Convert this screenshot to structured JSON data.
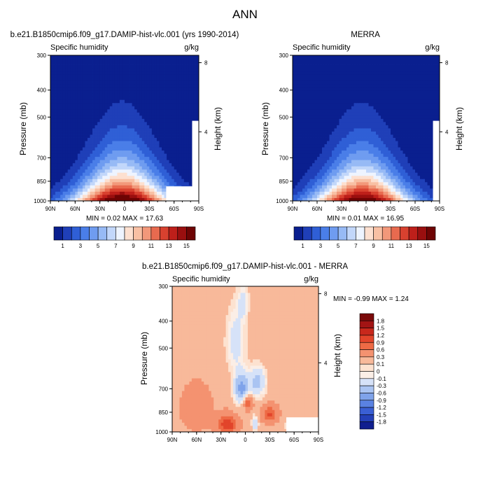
{
  "chart_data": {
    "type": "heatmap",
    "title": "ANN",
    "panels": [
      {
        "id": "model",
        "title": "b.e21.B1850cmip6.f09_g17.DAMIP-hist-vlc.001 (yrs 1990-2014)",
        "left_label": "Specific humidity",
        "right_label": "g/kg",
        "ylabel": "Pressure (mb)",
        "ylabel_right": "Height (km)",
        "x_ticks": [
          "90N",
          "60N",
          "30N",
          "0",
          "30S",
          "60S",
          "90S"
        ],
        "y_ticks": [
          "300",
          "400",
          "500",
          "700",
          "850",
          "1000"
        ],
        "height_ticks": [
          "8",
          "4"
        ],
        "stats": "MIN =  0.02  MAX =  17.63",
        "peak": 17.63,
        "peak_lat": 3
      },
      {
        "id": "obs",
        "title": "MERRA",
        "left_label": "Specific humidity",
        "right_label": "g/kg",
        "ylabel": "Pressure (mb)",
        "ylabel_right": "Height (km)",
        "x_ticks": [
          "90N",
          "60N",
          "30N",
          "0",
          "30S",
          "60S",
          "90S"
        ],
        "y_ticks": [
          "300",
          "400",
          "500",
          "700",
          "850",
          "1000"
        ],
        "height_ticks": [
          "8",
          "4"
        ],
        "stats": "MIN =  0.01  MAX =  16.95",
        "peak": 16.95,
        "peak_lat": 5
      },
      {
        "id": "diff",
        "title": "b.e21.B1850cmip6.f09_g17.DAMIP-hist-vlc.001 - MERRA",
        "left_label": "Specific humidity",
        "right_label": "g/kg",
        "ylabel": "Pressure (mb)",
        "ylabel_right": "Height (km)",
        "x_ticks": [
          "90N",
          "60N",
          "30N",
          "0",
          "30S",
          "60S",
          "90S"
        ],
        "y_ticks": [
          "300",
          "400",
          "500",
          "700",
          "850",
          "1000"
        ],
        "height_ticks": [
          "8",
          "4"
        ],
        "stats": "MIN =  -0.99  MAX =   1.24"
      }
    ],
    "colorbar_abs": {
      "labels": [
        "1",
        "3",
        "5",
        "7",
        "9",
        "11",
        "13",
        "15"
      ],
      "levels": [
        1,
        2,
        3,
        4,
        5,
        6,
        7,
        8,
        9,
        10,
        11,
        12,
        13,
        14,
        15
      ],
      "colors": [
        "#0a1f8f",
        "#1f3fb8",
        "#2f5fd6",
        "#4a7ee8",
        "#6f9cf0",
        "#97baf5",
        "#c2d7fa",
        "#eef4ff",
        "#fde0d0",
        "#f8c0a4",
        "#f2987a",
        "#e86a4f",
        "#d8412f",
        "#be1f1a",
        "#9a0f0f",
        "#6e0404"
      ]
    },
    "colorbar_diff": {
      "labels": [
        "1.8",
        "1.5",
        "1.2",
        "0.9",
        "0.6",
        "0.3",
        "0.1",
        "0",
        "-0.1",
        "-0.3",
        "-0.6",
        "-0.9",
        "-1.2",
        "-1.5",
        "-1.8"
      ],
      "colors": [
        "#7a0a0a",
        "#a21414",
        "#c8281c",
        "#e2452b",
        "#ee6a45",
        "#f49270",
        "#f8b99a",
        "#fde2d0",
        "#fbeee6",
        "#d6e2f8",
        "#aac4f2",
        "#7fa3ea",
        "#5a82e2",
        "#3a5fd4",
        "#2440b8",
        "#101e8f"
      ]
    }
  }
}
